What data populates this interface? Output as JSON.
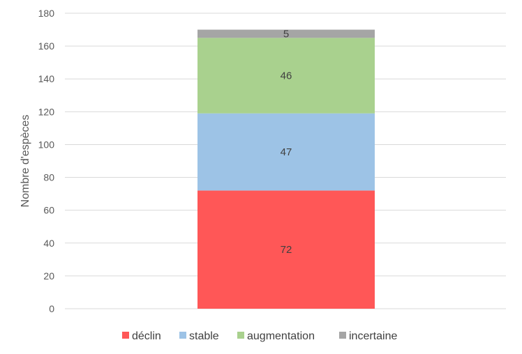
{
  "chart_data": {
    "type": "bar",
    "stacked": true,
    "categories": [
      ""
    ],
    "series": [
      {
        "name": "déclin",
        "values": [
          72
        ],
        "color": "#ff5757"
      },
      {
        "name": "stable",
        "values": [
          47
        ],
        "color": "#9dc3e6"
      },
      {
        "name": "augmentation",
        "values": [
          46
        ],
        "color": "#a9d18e"
      },
      {
        "name": "incertaine",
        "values": [
          5
        ],
        "color": "#a5a5a5"
      }
    ],
    "data_labels": [
      "72",
      "47",
      "46",
      "5"
    ],
    "ylabel": "Nombre d'espèces",
    "ylim": [
      0,
      180
    ],
    "yticks": [
      "0",
      "20",
      "40",
      "60",
      "80",
      "100",
      "120",
      "140",
      "160",
      "180"
    ],
    "grid": true,
    "legend_position": "bottom"
  }
}
